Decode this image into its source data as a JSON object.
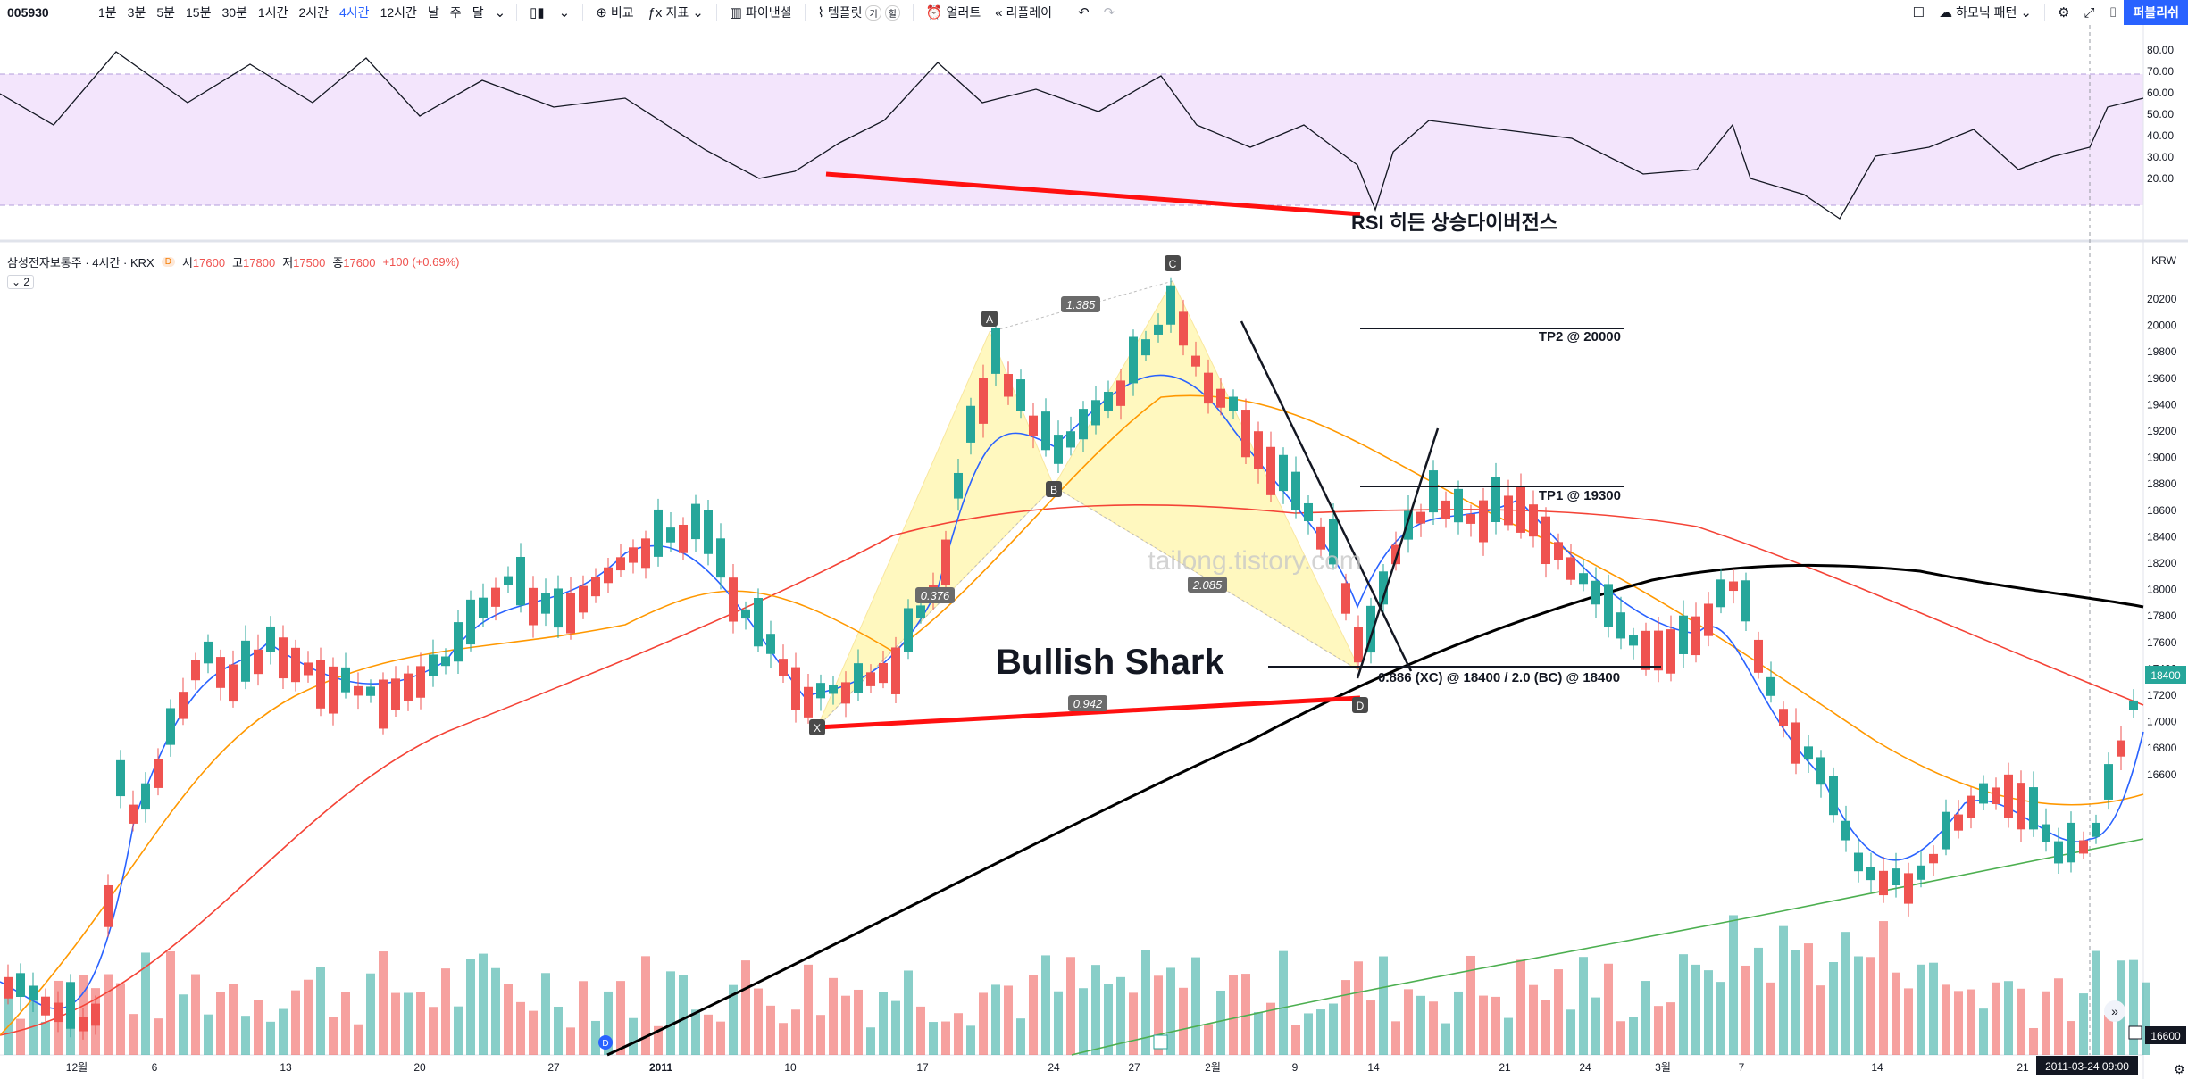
{
  "toolbar": {
    "symbol": "005930",
    "timeframes": [
      "1분",
      "3분",
      "5분",
      "15분",
      "30분",
      "1시간",
      "2시간",
      "4시간",
      "12시간",
      "날",
      "주",
      "달"
    ],
    "active_timeframe": "4시간",
    "compare": "비교",
    "indicators": "지표",
    "financials": "파이낸셜",
    "templates": "템플릿",
    "alert": "얼러트",
    "replay": "리플레이",
    "harmonic": "하모닉 패턴",
    "publish": "퍼블리쉬"
  },
  "legend": {
    "title": "삼성전자보통주 · 4시간 · KRX",
    "open_label": "시",
    "open": "17600",
    "high_label": "고",
    "high": "17800",
    "low_label": "저",
    "low": "17500",
    "close_label": "종",
    "close": "17600",
    "change": "+100 (+0.69%)",
    "badge": "D",
    "collapse": "2"
  },
  "rsi_axis": [
    "80.00",
    "70.00",
    "60.00",
    "50.00",
    "40.00",
    "30.00",
    "20.00"
  ],
  "price_axis": [
    "20200",
    "20000",
    "19800",
    "19600",
    "19400",
    "19200",
    "19000",
    "18800",
    "18600",
    "18400",
    "18200",
    "18000",
    "17800",
    "17600",
    "17400",
    "17200",
    "17000",
    "16800",
    "16600"
  ],
  "currency": "KRW",
  "last_price": "18400",
  "bottom_price": "16600",
  "x_axis": [
    "12월",
    "6",
    "13",
    "20",
    "27",
    "2011",
    "10",
    "17",
    "24",
    "27",
    "2월",
    "9",
    "14",
    "21",
    "24",
    "3월",
    "7",
    "14",
    "21"
  ],
  "cursor_time": "2011-03-24  09:00",
  "annotations": {
    "rsi_divergence": "RSI 히든 상승다이버전스",
    "pattern": "Bullish Shark",
    "tp2": "TP2 @ 20000",
    "tp1": "TP1 @ 19300",
    "entry": "0.886 (XC) @ 18400 / 2.0 (BC) @ 18400",
    "watermark": "tailong.tistory.com",
    "ratio_ac": "1.385",
    "ratio_xb": "0.376",
    "ratio_bd": "2.085",
    "ratio_xd": "0.942",
    "points": [
      "X",
      "A",
      "B",
      "C",
      "D"
    ]
  },
  "colors": {
    "up": "#26a69a",
    "down": "#ef5350",
    "ema_fast": "#2962ff",
    "ema_mid": "#ff9800",
    "ema_slow": "#f44336",
    "ema_200": "#000000",
    "ema_long": "#4caf50",
    "pattern_fill": "#fff59d",
    "rsi_band": "#f3e5fc"
  }
}
